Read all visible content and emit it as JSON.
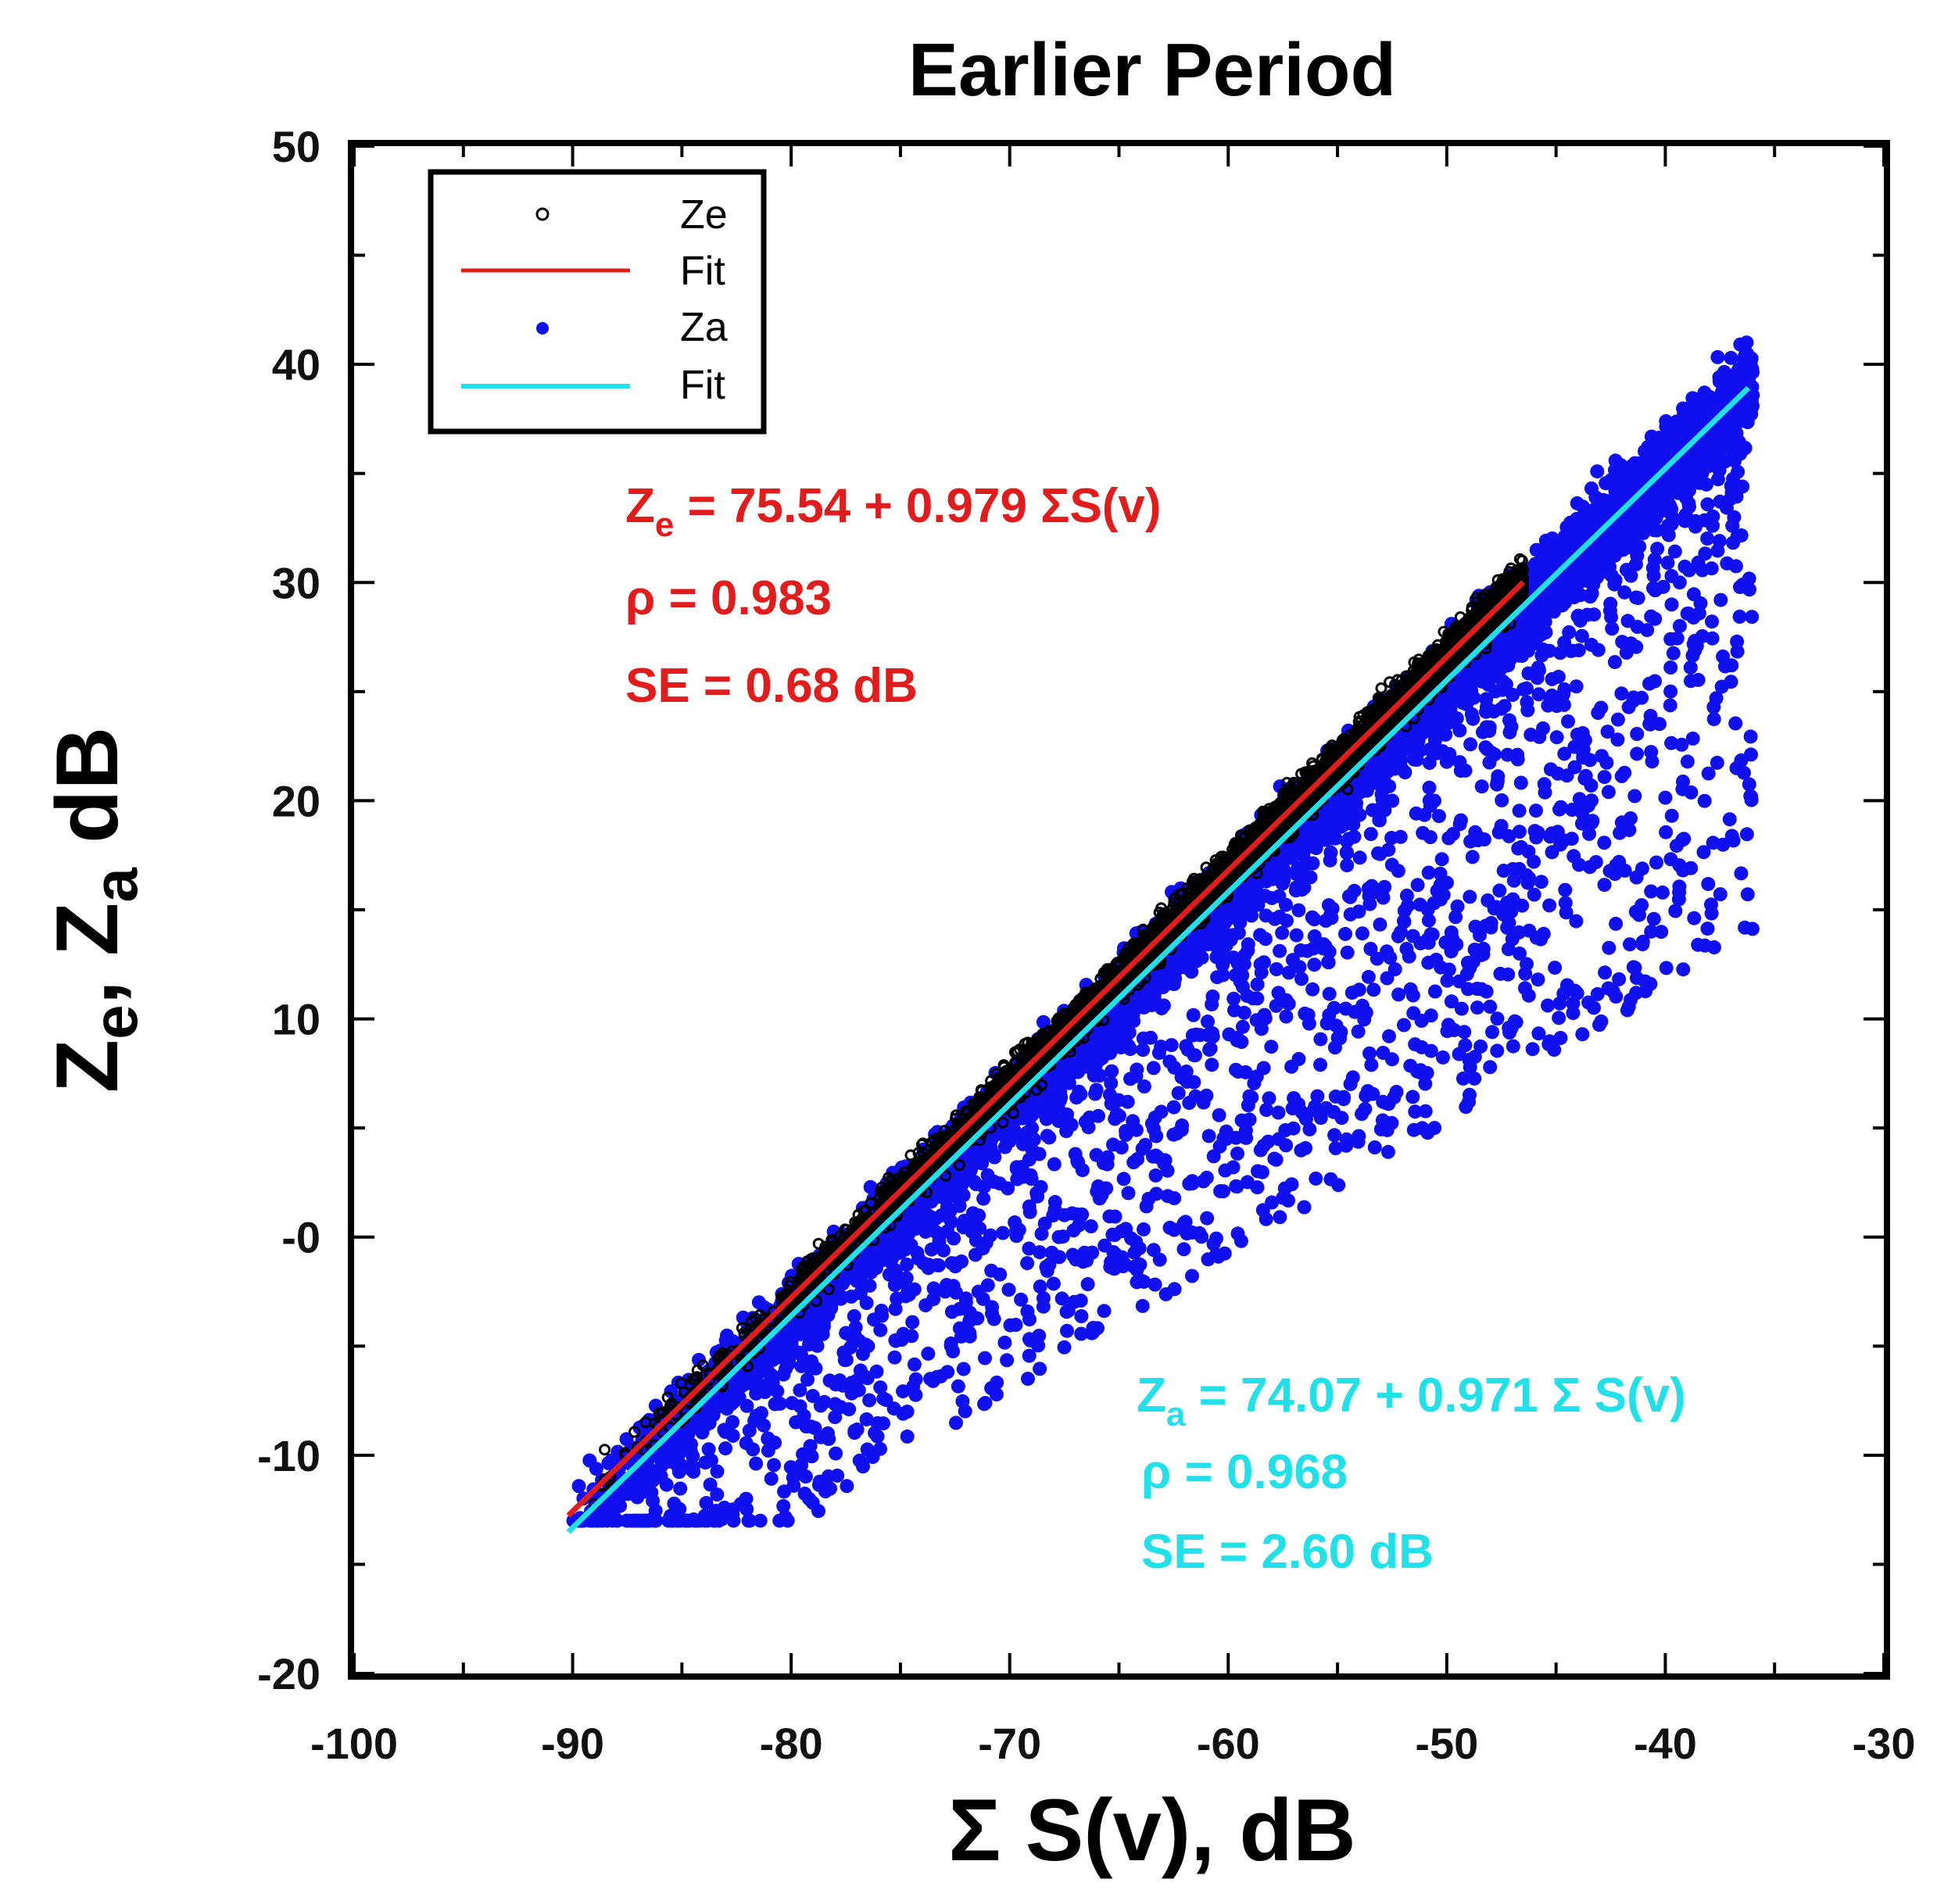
{
  "chart_data": {
    "type": "scatter",
    "title": "Earlier Period",
    "xlabel": {
      "main": "Σ S(v), dB"
    },
    "ylabel": {
      "z1": "Z",
      "sub1": "e",
      "sep": ", ",
      "z2": "Z",
      "sub2": "a",
      "unit": " dB"
    },
    "xlim": [
      -100,
      -30
    ],
    "ylim": [
      -20,
      50
    ],
    "x_ticks": [
      -100,
      -90,
      -80,
      -70,
      -60,
      -50,
      -40,
      -30
    ],
    "y_ticks": [
      -20,
      -10,
      0,
      10,
      20,
      30,
      40,
      50
    ],
    "y_tick_labels": [
      "-20",
      "-10",
      "-0",
      "10",
      "20",
      "30",
      "40",
      "50"
    ],
    "grid": false,
    "legend": {
      "position": "top-left",
      "entries": [
        {
          "label": "Ze",
          "kind": "open-circle",
          "color": "#000000"
        },
        {
          "label": "Fit",
          "kind": "line",
          "color": "#e01c1c"
        },
        {
          "label": "Za",
          "kind": "filled-circle",
          "color": "#1010ee"
        },
        {
          "label": "Fit",
          "kind": "line",
          "color": "#22e0e8"
        }
      ]
    },
    "series": [
      {
        "name": "Ze",
        "kind": "scatter",
        "marker": "open-circle",
        "color": "#000000",
        "x_range": [
          -90.2,
          -46.5
        ],
        "y_range": [
          -12.5,
          30.5
        ],
        "n_points": 4000
      },
      {
        "name": "Za",
        "kind": "scatter",
        "marker": "filled-circle",
        "color": "#1010ee",
        "x_range": [
          -90,
          -36
        ],
        "y_range": [
          -13,
          41
        ],
        "n_points": 7000
      },
      {
        "name": "Ze Fit",
        "kind": "line",
        "color": "#e01c1c",
        "intercept": 75.54,
        "slope": 0.979,
        "x": [
          -90.2,
          -46.5
        ]
      },
      {
        "name": "Za Fit",
        "kind": "line",
        "color": "#22e0e8",
        "intercept": 74.07,
        "slope": 0.971,
        "x": [
          -90.2,
          -36.2
        ]
      }
    ],
    "annotations": {
      "ze": {
        "lhs": "Z",
        "sub": "e",
        "rhs": " = 75.54 + 0.979 ΣS(v)",
        "rho": "ρ = 0.983",
        "se": "SE = 0.68 dB",
        "color": "#e01c1c"
      },
      "za": {
        "lhs": "Z",
        "sub": "a",
        "rhs": " = 74.07 + 0.971 Σ S(v)",
        "rho": "ρ = 0.968",
        "se": "SE = 2.60 dB",
        "color": "#22e0e8"
      }
    }
  }
}
